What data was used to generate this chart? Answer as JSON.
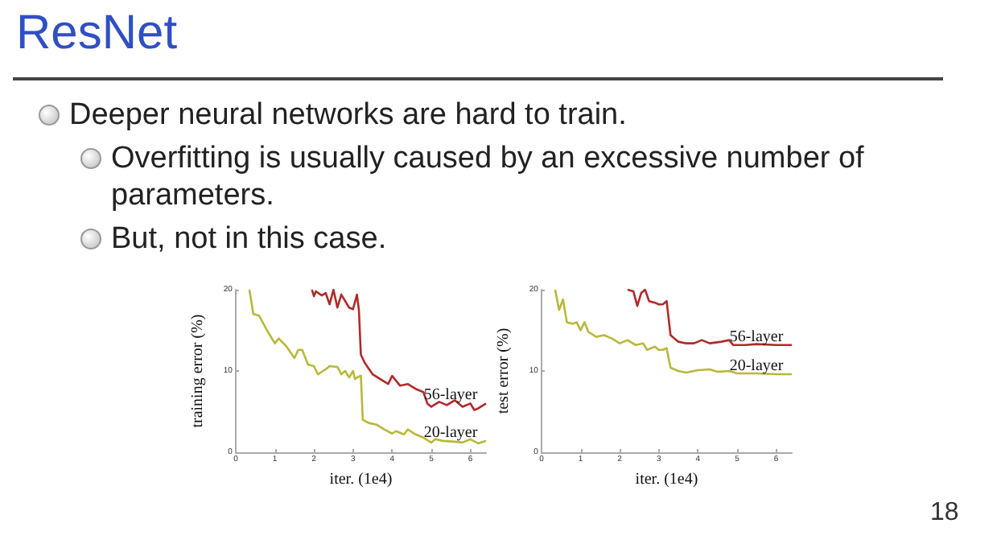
{
  "chart_data": [
    {
      "type": "other",
      "title": "ResNet",
      "annotations": [
        "Deeper neural networks are hard to train.",
        "Overfitting is usually caused by an excessive number of parameters.",
        "But, not in this case.",
        "18"
      ]
    },
    {
      "type": "line",
      "xlabel": "iter. (1e4)",
      "ylabel": "training error (%)",
      "xlim": [
        0,
        6.4
      ],
      "xticks": [
        0,
        1,
        2,
        3,
        4,
        5,
        6
      ],
      "ylim": [
        0,
        20
      ],
      "yticks": [
        0,
        10,
        20
      ],
      "marker": "none",
      "line_style": "solid",
      "series": [
        {
          "name": "56-layer",
          "color": "#b02a2a",
          "x": [
            1.95,
            2.0,
            2.05,
            2.2,
            2.3,
            2.4,
            2.5,
            2.6,
            2.7,
            2.9,
            3.0,
            3.1,
            3.15,
            3.2,
            3.3,
            3.5,
            3.7,
            3.9,
            4.0,
            4.2,
            4.4,
            4.6,
            4.8,
            4.9,
            5.0,
            5.2,
            5.4,
            5.6,
            5.8,
            6.0,
            6.1,
            6.2,
            6.4
          ],
          "values": [
            20,
            19.2,
            19.8,
            19.3,
            19.6,
            18.2,
            20,
            17.8,
            19.4,
            17.8,
            17.6,
            19.4,
            17.5,
            12,
            11,
            9.6,
            9,
            8.4,
            9.4,
            8.2,
            8.4,
            7.8,
            7.4,
            6,
            5.6,
            6.2,
            5.8,
            6.4,
            5.6,
            6.0,
            5.2,
            5.4,
            6.0
          ]
        },
        {
          "name": "20-layer",
          "color": "#b8b83a",
          "x": [
            0.35,
            0.45,
            0.6,
            0.8,
            1.0,
            1.1,
            1.3,
            1.5,
            1.6,
            1.7,
            1.85,
            2.0,
            2.1,
            2.3,
            2.4,
            2.6,
            2.7,
            2.8,
            2.9,
            3.0,
            3.05,
            3.1,
            3.2,
            3.25,
            3.4,
            3.6,
            3.8,
            4.0,
            4.1,
            4.3,
            4.4,
            4.6,
            4.8,
            5.0,
            5.1,
            5.3,
            5.6,
            5.8,
            6.0,
            6.2,
            6.4
          ],
          "values": [
            20,
            17,
            16.8,
            15,
            13.4,
            14,
            13,
            11.6,
            12.6,
            12.6,
            10.8,
            10.6,
            9.6,
            10.2,
            10.6,
            10.5,
            9.6,
            10,
            9.2,
            10,
            9.0,
            9.2,
            9.4,
            4,
            3.6,
            3.4,
            2.8,
            2.3,
            2.6,
            2.2,
            2.8,
            2.2,
            1.8,
            1.2,
            1.6,
            1.4,
            1.3,
            1.2,
            1.6,
            1.1,
            1.4
          ]
        }
      ]
    },
    {
      "type": "line",
      "xlabel": "iter. (1e4)",
      "ylabel": "test error (%)",
      "xlim": [
        0,
        6.4
      ],
      "xticks": [
        0,
        1,
        2,
        3,
        4,
        5,
        6
      ],
      "ylim": [
        0,
        20
      ],
      "yticks": [
        0,
        10,
        20
      ],
      "marker": "none",
      "line_style": "solid",
      "series": [
        {
          "name": "56-layer",
          "color": "#b02a2a",
          "x": [
            2.2,
            2.35,
            2.45,
            2.55,
            2.65,
            2.75,
            2.9,
            3.0,
            3.1,
            3.2,
            3.3,
            3.5,
            3.7,
            3.9,
            4.1,
            4.3,
            4.6,
            4.8,
            4.9,
            5.2,
            5.5,
            6.0,
            6.4
          ],
          "values": [
            20,
            19.8,
            18,
            19.6,
            20,
            18.6,
            18.4,
            18.2,
            18.2,
            18.6,
            14.4,
            13.6,
            13.4,
            13.4,
            13.8,
            13.4,
            13.6,
            13.8,
            13.2,
            13.2,
            13.3,
            13.2,
            13.2
          ]
        },
        {
          "name": "20-layer",
          "color": "#b8b83a",
          "x": [
            0.35,
            0.45,
            0.55,
            0.65,
            0.8,
            0.9,
            1.0,
            1.1,
            1.2,
            1.4,
            1.6,
            1.8,
            2.0,
            2.2,
            2.4,
            2.6,
            2.7,
            2.9,
            3.0,
            3.1,
            3.2,
            3.3,
            3.5,
            3.7,
            4.0,
            4.3,
            4.5,
            4.8,
            5.0,
            5.5,
            6.0,
            6.4
          ],
          "values": [
            20,
            17.5,
            18.8,
            16,
            15.8,
            16,
            15,
            16,
            14.8,
            14.2,
            14.4,
            14,
            13.4,
            13.8,
            13.2,
            13.4,
            12.6,
            13,
            12.6,
            12.6,
            12.8,
            10.4,
            10,
            9.8,
            10.1,
            10.2,
            9.9,
            10,
            9.7,
            9.7,
            9.6,
            9.6
          ]
        }
      ]
    }
  ]
}
